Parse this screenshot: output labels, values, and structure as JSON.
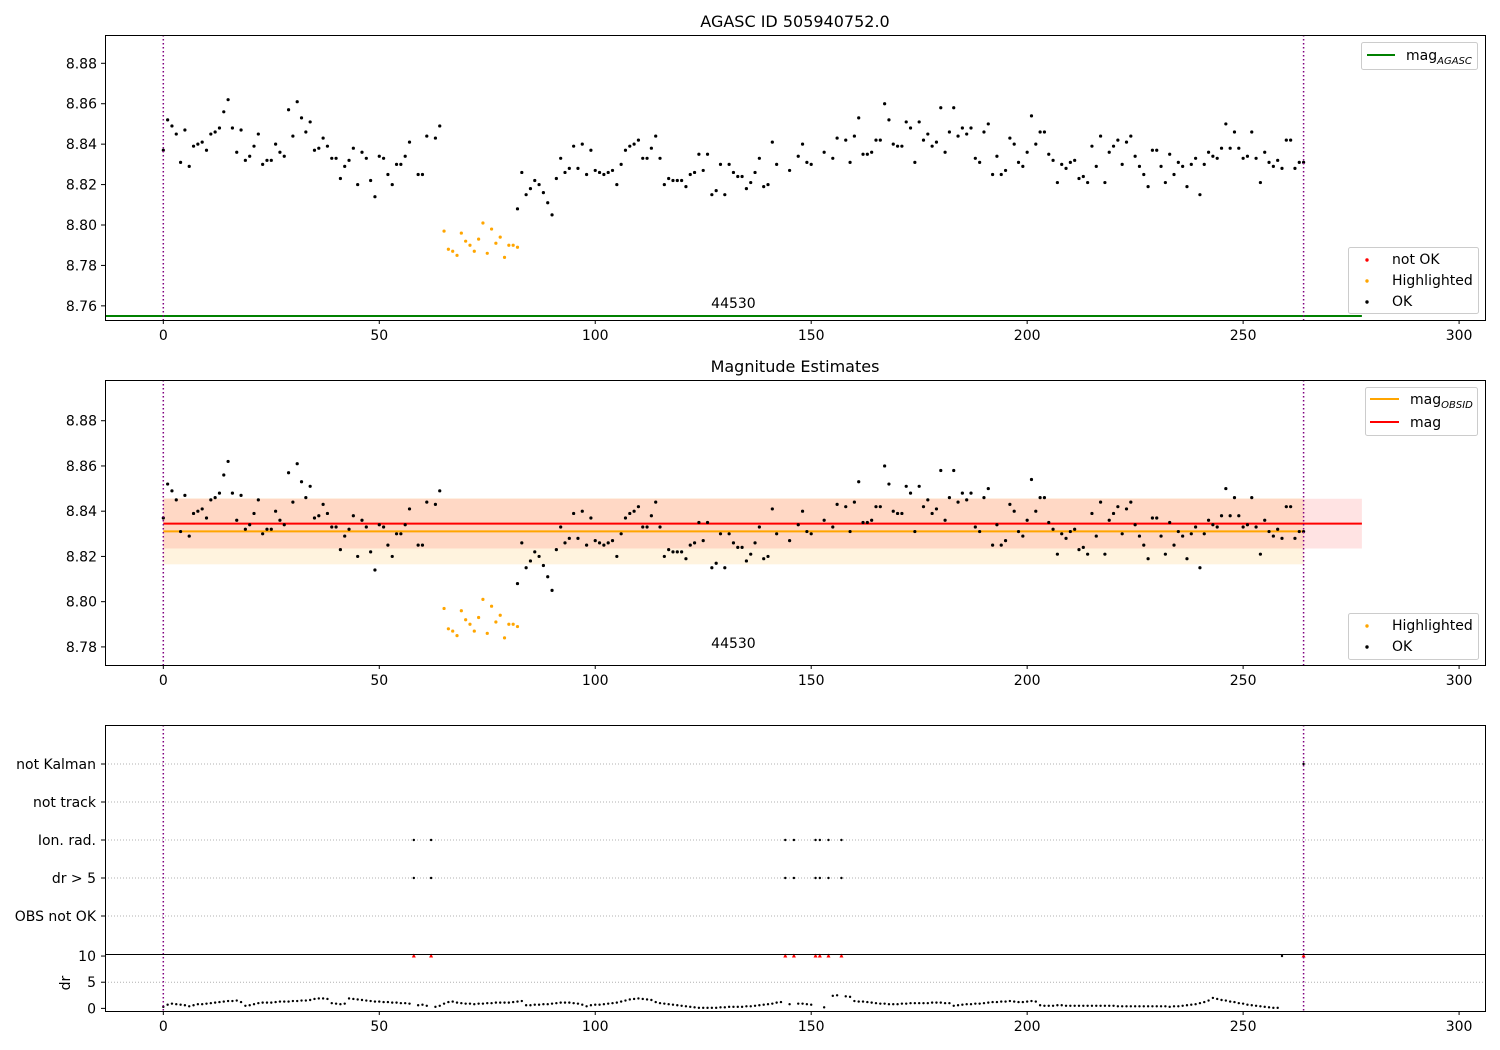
{
  "chart_data": [
    {
      "type": "scatter",
      "title": "AGASC ID 505940752.0",
      "xlim": [
        -13.5,
        306
      ],
      "ylim": [
        8.753,
        8.894
      ],
      "xticks": [
        0,
        50,
        100,
        150,
        200,
        250,
        300
      ],
      "yticks": [
        8.76,
        8.78,
        8.8,
        8.82,
        8.84,
        8.86,
        8.88
      ],
      "vlines": [
        0,
        264
      ],
      "obsid_label": {
        "text": "44530",
        "x": 132,
        "y": 8.755
      },
      "mag_agasc": {
        "value": 8.755,
        "x_range": [
          -13.5,
          277.5
        ],
        "color": "#008000"
      },
      "legend_lines": [
        {
          "label": "mag",
          "sub": "AGASC",
          "color": "#008000"
        }
      ],
      "legend_points": [
        {
          "label": "not OK",
          "color": "#ff0000"
        },
        {
          "label": "Highlighted",
          "color": "#ffa500"
        },
        {
          "label": "OK",
          "color": "#000000"
        }
      ]
    },
    {
      "type": "scatter",
      "title": "Magnitude Estimates",
      "xlim": [
        -13.5,
        306
      ],
      "ylim": [
        8.772,
        8.898
      ],
      "xticks": [
        0,
        50,
        100,
        150,
        200,
        250,
        300
      ],
      "yticks": [
        8.78,
        8.8,
        8.82,
        8.84,
        8.86,
        8.88
      ],
      "vlines": [
        0,
        264
      ],
      "obsid_label": {
        "text": "44530",
        "x": 132,
        "y": 8.776
      },
      "mag_obsid": {
        "value": 8.8311,
        "band": [
          8.8165,
          8.8457
        ],
        "x_range": [
          0,
          264
        ],
        "color": "#ffa500"
      },
      "mag": {
        "value": 8.8345,
        "band": [
          8.8235,
          8.8455
        ],
        "x_range": [
          0,
          277.5
        ],
        "color": "#ff0000"
      },
      "legend_lines": [
        {
          "label": "mag",
          "sub": "OBSID",
          "color": "#ffa500"
        },
        {
          "label": "mag",
          "sub": "",
          "color": "#ff0000"
        }
      ],
      "legend_points": [
        {
          "label": "Highlighted",
          "color": "#ffa500"
        },
        {
          "label": "OK",
          "color": "#000000"
        }
      ]
    },
    {
      "type": "scatter",
      "xlim": [
        -13.5,
        306
      ],
      "xticks": [
        0,
        50,
        100,
        150,
        200,
        250,
        300
      ],
      "vlines": [
        0,
        264
      ],
      "flag_rows": [
        "not Kalman",
        "not track",
        "Ion. rad.",
        "dr > 5",
        "OBS not OK"
      ],
      "flag_points": {
        "Ion. rad.": [
          58,
          62,
          144,
          146,
          151,
          152,
          154,
          157
        ],
        "dr > 5": [
          58,
          62,
          144,
          146,
          151,
          152,
          154,
          157
        ],
        "not Kalman": [
          264
        ]
      },
      "dr_ylabel": "dr",
      "dr_ylim": [
        -0.5,
        10.2
      ],
      "dr_yticks": [
        0,
        5,
        10
      ],
      "dr_outliers": [
        58,
        62,
        144,
        146,
        151,
        152,
        154,
        157,
        264
      ],
      "dr_outlier_value": 10,
      "dr_outlier_color": "#ff0000",
      "dr_values": [
        0.3,
        0.7,
        0.9,
        0.8,
        0.7,
        0.6,
        0.4,
        0.6,
        0.8,
        0.8,
        0.9,
        1.0,
        1.1,
        1.2,
        1.3,
        1.4,
        1.4,
        1.5,
        1.2,
        0.5,
        0.6,
        0.8,
        1.0,
        1.1,
        1.1,
        1.1,
        1.2,
        1.3,
        1.3,
        1.3,
        1.4,
        1.4,
        1.5,
        1.5,
        1.6,
        1.8,
        1.9,
        1.9,
        1.8,
        1.0,
        0.9,
        0.8,
        0.9,
        1.9,
        1.8,
        1.7,
        1.6,
        1.5,
        1.4,
        1.3,
        1.3,
        1.2,
        1.2,
        1.1,
        1.1,
        1.0,
        1.0,
        0.9,
        10,
        0.6,
        0.7,
        0.5,
        10,
        0.3,
        0.5,
        0.9,
        1.2,
        1.3,
        1.1,
        1.0,
        0.9,
        0.9,
        0.8,
        0.9,
        0.9,
        1.0,
        1.0,
        1.1,
        1.1,
        1.1,
        1.1,
        1.2,
        1.3,
        1.4,
        0.6,
        0.6,
        0.7,
        0.7,
        0.8,
        0.8,
        0.9,
        1.0,
        1.1,
        1.1,
        1.1,
        1.0,
        0.9,
        0.7,
        0.4,
        0.6,
        0.7,
        0.7,
        0.8,
        0.9,
        1.0,
        1.1,
        1.3,
        1.5,
        1.7,
        1.8,
        1.9,
        1.8,
        1.7,
        1.6,
        1.2,
        1.0,
        0.9,
        0.8,
        0.7,
        0.6,
        0.5,
        0.4,
        0.3,
        0.2,
        0.1,
        0.1,
        0.1,
        0.1,
        0.1,
        0.2,
        0.2,
        0.3,
        0.3,
        0.3,
        0.3,
        0.4,
        0.4,
        0.5,
        0.6,
        0.7,
        0.8,
        0.9,
        1.1,
        1.2,
        10,
        0.8,
        10,
        0.9,
        0.9,
        0.8,
        0.7,
        10,
        10,
        0.2,
        10,
        2.4,
        2.5,
        10,
        2.3,
        2.2,
        1.4,
        1.3,
        1.3,
        1.2,
        1.1,
        1.0,
        0.9,
        0.9,
        0.8,
        0.8,
        0.8,
        0.9,
        0.9,
        1.0,
        1.0,
        1.0,
        1.0,
        1.0,
        1.1,
        1.1,
        1.1,
        1.0,
        1.0,
        0.5,
        0.6,
        0.7,
        0.8,
        0.8,
        0.9,
        0.9,
        1.0,
        1.1,
        1.2,
        1.2,
        1.3,
        1.3,
        1.4,
        1.3,
        1.2,
        1.2,
        1.3,
        1.4,
        1.3,
        0.6,
        0.5,
        0.5,
        0.5,
        0.6,
        0.6,
        0.5,
        0.5,
        0.5,
        0.5,
        0.5,
        0.5,
        0.5,
        0.5,
        0.5,
        0.5,
        0.5,
        0.5,
        0.4,
        0.4,
        0.4,
        0.4,
        0.4,
        0.4,
        0.4,
        0.4,
        0.4,
        0.4,
        0.4,
        0.4,
        0.3,
        0.4,
        0.4,
        0.5,
        0.6,
        0.7,
        0.8,
        1.0,
        1.2,
        1.5,
        2.0,
        1.8,
        1.6,
        1.5,
        1.3,
        1.2,
        1.0,
        0.9,
        0.7,
        0.6,
        0.5,
        0.4,
        0.3,
        0.2,
        0.1,
        0.1,
        10
      ]
    }
  ],
  "mag_points": {
    "ok": [
      [
        0,
        8.837
      ],
      [
        1,
        8.852
      ],
      [
        2,
        8.849
      ],
      [
        3,
        8.845
      ],
      [
        4,
        8.831
      ],
      [
        5,
        8.847
      ],
      [
        6,
        8.829
      ],
      [
        7,
        8.839
      ],
      [
        8,
        8.84
      ],
      [
        9,
        8.841
      ],
      [
        10,
        8.837
      ],
      [
        11,
        8.845
      ],
      [
        12,
        8.846
      ],
      [
        13,
        8.848
      ],
      [
        14,
        8.856
      ],
      [
        15,
        8.862
      ],
      [
        16,
        8.848
      ],
      [
        17,
        8.836
      ],
      [
        18,
        8.847
      ],
      [
        19,
        8.832
      ],
      [
        20,
        8.834
      ],
      [
        21,
        8.839
      ],
      [
        22,
        8.845
      ],
      [
        23,
        8.83
      ],
      [
        24,
        8.832
      ],
      [
        25,
        8.832
      ],
      [
        26,
        8.84
      ],
      [
        27,
        8.836
      ],
      [
        28,
        8.834
      ],
      [
        29,
        8.857
      ],
      [
        30,
        8.844
      ],
      [
        31,
        8.861
      ],
      [
        32,
        8.853
      ],
      [
        33,
        8.846
      ],
      [
        34,
        8.851
      ],
      [
        35,
        8.837
      ],
      [
        36,
        8.838
      ],
      [
        37,
        8.843
      ],
      [
        38,
        8.839
      ],
      [
        39,
        8.833
      ],
      [
        40,
        8.833
      ],
      [
        41,
        8.823
      ],
      [
        42,
        8.829
      ],
      [
        43,
        8.832
      ],
      [
        44,
        8.838
      ],
      [
        45,
        8.82
      ],
      [
        46,
        8.836
      ],
      [
        47,
        8.833
      ],
      [
        48,
        8.822
      ],
      [
        49,
        8.814
      ],
      [
        50,
        8.834
      ],
      [
        51,
        8.833
      ],
      [
        52,
        8.825
      ],
      [
        53,
        8.82
      ],
      [
        54,
        8.83
      ],
      [
        55,
        8.83
      ],
      [
        56,
        8.834
      ],
      [
        57,
        8.841
      ],
      [
        59,
        8.825
      ],
      [
        60,
        8.825
      ],
      [
        61,
        8.844
      ],
      [
        63,
        8.843
      ],
      [
        64,
        8.849
      ],
      [
        82,
        8.808
      ],
      [
        83,
        8.826
      ],
      [
        84,
        8.815
      ],
      [
        85,
        8.818
      ],
      [
        86,
        8.822
      ],
      [
        87,
        8.82
      ],
      [
        88,
        8.816
      ],
      [
        89,
        8.811
      ],
      [
        90,
        8.805
      ],
      [
        91,
        8.823
      ],
      [
        92,
        8.833
      ],
      [
        93,
        8.826
      ],
      [
        94,
        8.828
      ],
      [
        95,
        8.839
      ],
      [
        96,
        8.828
      ],
      [
        97,
        8.84
      ],
      [
        98,
        8.825
      ],
      [
        99,
        8.837
      ],
      [
        100,
        8.827
      ],
      [
        101,
        8.826
      ],
      [
        102,
        8.825
      ],
      [
        103,
        8.826
      ],
      [
        104,
        8.827
      ],
      [
        105,
        8.82
      ],
      [
        106,
        8.83
      ],
      [
        107,
        8.837
      ],
      [
        108,
        8.839
      ],
      [
        109,
        8.84
      ],
      [
        110,
        8.842
      ],
      [
        111,
        8.833
      ],
      [
        112,
        8.833
      ],
      [
        113,
        8.838
      ],
      [
        114,
        8.844
      ],
      [
        115,
        8.833
      ],
      [
        116,
        8.82
      ],
      [
        117,
        8.823
      ],
      [
        118,
        8.822
      ],
      [
        119,
        8.822
      ],
      [
        120,
        8.822
      ],
      [
        121,
        8.819
      ],
      [
        122,
        8.825
      ],
      [
        123,
        8.826
      ],
      [
        124,
        8.835
      ],
      [
        125,
        8.827
      ],
      [
        126,
        8.835
      ],
      [
        127,
        8.815
      ],
      [
        128,
        8.817
      ],
      [
        129,
        8.83
      ],
      [
        130,
        8.815
      ],
      [
        131,
        8.83
      ],
      [
        132,
        8.826
      ],
      [
        133,
        8.824
      ],
      [
        134,
        8.824
      ],
      [
        135,
        8.818
      ],
      [
        136,
        8.821
      ],
      [
        137,
        8.826
      ],
      [
        138,
        8.833
      ],
      [
        139,
        8.819
      ],
      [
        140,
        8.82
      ],
      [
        141,
        8.841
      ],
      [
        142,
        8.83
      ],
      [
        145,
        8.827
      ],
      [
        147,
        8.834
      ],
      [
        148,
        8.84
      ],
      [
        149,
        8.831
      ],
      [
        150,
        8.83
      ],
      [
        153,
        8.836
      ],
      [
        155,
        8.833
      ],
      [
        156,
        8.843
      ],
      [
        158,
        8.842
      ],
      [
        159,
        8.831
      ],
      [
        160,
        8.844
      ],
      [
        161,
        8.853
      ],
      [
        162,
        8.835
      ],
      [
        163,
        8.835
      ],
      [
        164,
        8.836
      ],
      [
        165,
        8.842
      ],
      [
        166,
        8.842
      ],
      [
        167,
        8.86
      ],
      [
        168,
        8.852
      ],
      [
        169,
        8.84
      ],
      [
        170,
        8.839
      ],
      [
        171,
        8.839
      ],
      [
        172,
        8.851
      ],
      [
        173,
        8.848
      ],
      [
        174,
        8.831
      ],
      [
        175,
        8.851
      ],
      [
        176,
        8.842
      ],
      [
        177,
        8.845
      ],
      [
        178,
        8.839
      ],
      [
        179,
        8.841
      ],
      [
        180,
        8.858
      ],
      [
        181,
        8.836
      ],
      [
        182,
        8.846
      ],
      [
        183,
        8.858
      ],
      [
        184,
        8.844
      ],
      [
        185,
        8.848
      ],
      [
        186,
        8.845
      ],
      [
        187,
        8.848
      ],
      [
        188,
        8.833
      ],
      [
        189,
        8.831
      ],
      [
        190,
        8.846
      ],
      [
        191,
        8.85
      ],
      [
        192,
        8.825
      ],
      [
        193,
        8.834
      ],
      [
        194,
        8.825
      ],
      [
        195,
        8.827
      ],
      [
        196,
        8.843
      ],
      [
        197,
        8.84
      ],
      [
        198,
        8.831
      ],
      [
        199,
        8.829
      ],
      [
        200,
        8.836
      ],
      [
        201,
        8.854
      ],
      [
        202,
        8.84
      ],
      [
        203,
        8.846
      ],
      [
        204,
        8.846
      ],
      [
        205,
        8.835
      ],
      [
        206,
        8.832
      ],
      [
        207,
        8.821
      ],
      [
        208,
        8.83
      ],
      [
        209,
        8.828
      ],
      [
        210,
        8.831
      ],
      [
        211,
        8.832
      ],
      [
        212,
        8.823
      ],
      [
        213,
        8.824
      ],
      [
        214,
        8.821
      ],
      [
        215,
        8.839
      ],
      [
        216,
        8.829
      ],
      [
        217,
        8.844
      ],
      [
        218,
        8.821
      ],
      [
        219,
        8.836
      ],
      [
        220,
        8.839
      ],
      [
        221,
        8.842
      ],
      [
        222,
        8.83
      ],
      [
        223,
        8.841
      ],
      [
        224,
        8.844
      ],
      [
        225,
        8.834
      ],
      [
        226,
        8.829
      ],
      [
        227,
        8.825
      ],
      [
        228,
        8.819
      ],
      [
        229,
        8.837
      ],
      [
        230,
        8.837
      ],
      [
        231,
        8.829
      ],
      [
        232,
        8.821
      ],
      [
        233,
        8.835
      ],
      [
        234,
        8.825
      ],
      [
        235,
        8.831
      ],
      [
        236,
        8.829
      ],
      [
        237,
        8.819
      ],
      [
        238,
        8.83
      ],
      [
        239,
        8.833
      ],
      [
        240,
        8.815
      ],
      [
        241,
        8.83
      ],
      [
        242,
        8.836
      ],
      [
        243,
        8.834
      ],
      [
        244,
        8.833
      ],
      [
        245,
        8.838
      ],
      [
        246,
        8.85
      ],
      [
        247,
        8.838
      ],
      [
        248,
        8.846
      ],
      [
        249,
        8.838
      ],
      [
        250,
        8.833
      ],
      [
        251,
        8.834
      ],
      [
        252,
        8.846
      ],
      [
        253,
        8.833
      ],
      [
        254,
        8.821
      ],
      [
        255,
        8.836
      ],
      [
        256,
        8.831
      ],
      [
        257,
        8.829
      ],
      [
        258,
        8.832
      ],
      [
        259,
        8.828
      ],
      [
        260,
        8.842
      ],
      [
        261,
        8.842
      ],
      [
        262,
        8.828
      ],
      [
        263,
        8.831
      ],
      [
        264,
        8.831
      ]
    ],
    "highlighted": [
      [
        65,
        8.797
      ],
      [
        66,
        8.788
      ],
      [
        67,
        8.787
      ],
      [
        68,
        8.785
      ],
      [
        69,
        8.796
      ],
      [
        70,
        8.792
      ],
      [
        71,
        8.79
      ],
      [
        72,
        8.787
      ],
      [
        73,
        8.793
      ],
      [
        74,
        8.801
      ],
      [
        75,
        8.786
      ],
      [
        76,
        8.798
      ],
      [
        77,
        8.791
      ],
      [
        78,
        8.794
      ],
      [
        79,
        8.784
      ],
      [
        80,
        8.79
      ],
      [
        81,
        8.79
      ],
      [
        82,
        8.789
      ]
    ]
  }
}
